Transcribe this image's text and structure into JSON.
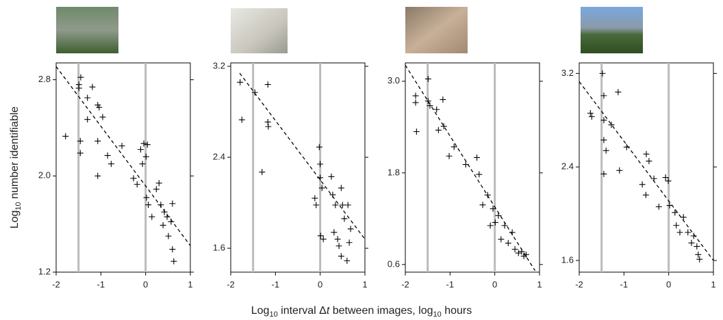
{
  "chart_data": [
    {
      "type": "scatter",
      "xlim": [
        -2,
        1
      ],
      "ylim": [
        1.2,
        2.94
      ],
      "xticks": [
        -2,
        -1,
        0,
        1
      ],
      "yticks": [
        1.2,
        {
          "value": 2,
          "label": "2.0"
        },
        2.8
      ],
      "vlines": [
        -1.5,
        0
      ],
      "vline_color": "#bbbbbb",
      "series": [
        {
          "color": "#000000",
          "marker": "plus",
          "x": [
            -1.79,
            -1.49,
            -1.49,
            -1.45,
            -1.46,
            -1.46,
            -1.3,
            -1.3,
            -1.19,
            -1.07,
            -1.04,
            -1.07,
            -1.07,
            -0.96,
            -0.85,
            -0.77,
            -0.53,
            -0.27,
            -0.19,
            -0.11,
            -0.07,
            -0.04,
            0.01,
            0.04,
            0.02,
            0.06,
            0.14,
            0.24,
            0.3,
            0.34,
            0.39,
            0.42,
            0.48,
            0.51,
            0.57,
            0.6,
            0.6,
            0.63
          ],
          "values": [
            2.33,
            2.76,
            2.73,
            2.82,
            2.29,
            2.19,
            2.65,
            2.47,
            2.74,
            2.59,
            2.57,
            2.29,
            2.0,
            2.49,
            2.17,
            2.1,
            2.25,
            1.98,
            1.93,
            2.22,
            2.1,
            2.27,
            2.16,
            2.26,
            1.82,
            1.76,
            1.66,
            1.89,
            1.94,
            1.76,
            1.59,
            1.7,
            1.66,
            1.5,
            1.62,
            1.77,
            1.39,
            1.29
          ]
        }
      ],
      "fit": {
        "style": "dashed",
        "color": "#000000",
        "x": [
          -2,
          1
        ],
        "values": [
          2.91,
          1.42
        ]
      }
    },
    {
      "type": "scatter",
      "xlim": [
        -2,
        1
      ],
      "ylim": [
        1.39,
        3.23
      ],
      "xticks": [
        -2,
        -1,
        0,
        1
      ],
      "yticks": [
        1.6,
        2.4,
        3.2
      ],
      "vlines": [
        -1.5,
        0
      ],
      "vline_color": "#bbbbbb",
      "series": [
        {
          "color": "#000000",
          "marker": "plus",
          "x": [
            -1.79,
            -1.75,
            -1.46,
            -1.3,
            -1.17,
            -1.17,
            -1.16,
            -0.12,
            -0.09,
            -0.02,
            0,
            0,
            0.04,
            0.01,
            0.07,
            0.25,
            0.28,
            0.34,
            0.31,
            0.39,
            0.47,
            0.5,
            0.54,
            0.47,
            0.6,
            0.62,
            0.68,
            0.65,
            0.42
          ],
          "values": [
            3.06,
            2.73,
            2.97,
            2.27,
            3.04,
            2.71,
            2.67,
            2.04,
            1.98,
            2.49,
            2.34,
            2.22,
            2.13,
            1.71,
            1.68,
            2.23,
            2.07,
            1.98,
            1.74,
            1.68,
            2.13,
            1.98,
            1.86,
            1.53,
            1.49,
            1.98,
            1.77,
            1.65,
            1.62
          ]
        }
      ],
      "fit": {
        "style": "dashed",
        "color": "#000000",
        "x": [
          -1.8,
          1
        ],
        "values": [
          3.14,
          1.68
        ]
      }
    },
    {
      "type": "scatter",
      "xlim": [
        -2,
        1
      ],
      "ylim": [
        0.5,
        3.24
      ],
      "xticks": [
        -2,
        -1,
        0,
        1
      ],
      "yticks": [
        0.6,
        1.8,
        {
          "value": 3,
          "label": "3.0"
        }
      ],
      "vlines": [
        -1.5,
        0
      ],
      "vline_color": "#bbbbbb",
      "series": [
        {
          "color": "#000000",
          "marker": "plus",
          "x": [
            -1.77,
            -1.77,
            -1.75,
            -1.49,
            -1.49,
            -1.45,
            -1.3,
            -1.26,
            -1.16,
            -1.14,
            -1.02,
            -0.91,
            -0.65,
            -0.4,
            -0.35,
            -0.27,
            -0.16,
            -0.1,
            -0.04,
            0.01,
            0.08,
            0.14,
            0.22,
            0.3,
            0.39,
            0.45,
            0.53,
            0.6,
            0.65,
            0.7
          ],
          "values": [
            2.81,
            2.72,
            2.34,
            3.03,
            2.74,
            2.68,
            2.63,
            2.36,
            2.76,
            2.41,
            2.02,
            2.14,
            1.91,
            2.0,
            1.78,
            1.38,
            1.51,
            1.11,
            1.33,
            1.15,
            1.24,
            0.93,
            1.11,
            0.88,
            1.02,
            0.8,
            0.75,
            0.77,
            0.71,
            0.73
          ]
        }
      ],
      "fit": {
        "style": "dashed",
        "color": "#000000",
        "x": [
          -2,
          0.9
        ],
        "values": [
          3.21,
          0.52
        ]
      }
    },
    {
      "type": "scatter",
      "xlim": [
        -2,
        1
      ],
      "ylim": [
        1.5,
        3.29
      ],
      "xticks": [
        -2,
        -1,
        0,
        1
      ],
      "yticks": [
        1.6,
        2.4,
        3.2
      ],
      "vlines": [
        -1.5,
        0
      ],
      "vline_color": "#bbbbbb",
      "series": [
        {
          "color": "#000000",
          "marker": "plus",
          "x": [
            -1.75,
            -1.72,
            -1.48,
            -1.45,
            -1.45,
            -1.45,
            -1.45,
            -1.4,
            -1.28,
            -1.13,
            -1.1,
            -0.94,
            -0.59,
            -0.5,
            -0.44,
            -0.51,
            -0.33,
            -0.22,
            -0.07,
            -0.01,
            0.02,
            0.14,
            0.17,
            0.25,
            0.33,
            0.43,
            0.51,
            0.56,
            0.63,
            0.66,
            0.69
          ],
          "values": [
            2.86,
            2.83,
            3.2,
            3.01,
            2.8,
            2.63,
            2.34,
            2.54,
            2.76,
            3.04,
            2.37,
            2.57,
            2.25,
            2.51,
            2.45,
            2.16,
            2.3,
            2.06,
            2.31,
            2.28,
            2.07,
            2.01,
            1.9,
            1.84,
            1.97,
            1.84,
            1.75,
            1.81,
            1.72,
            1.65,
            1.61
          ]
        }
      ],
      "fit": {
        "style": "dashed",
        "color": "#000000",
        "x": [
          -2,
          1
        ],
        "values": [
          3.13,
          1.6
        ]
      }
    }
  ],
  "ylabel": [
    "Log",
    "10",
    " number identifiable"
  ],
  "xlabel": [
    "Log",
    "10",
    " interval ",
    "Δ",
    "t",
    " between images, log",
    "10",
    " hours"
  ]
}
